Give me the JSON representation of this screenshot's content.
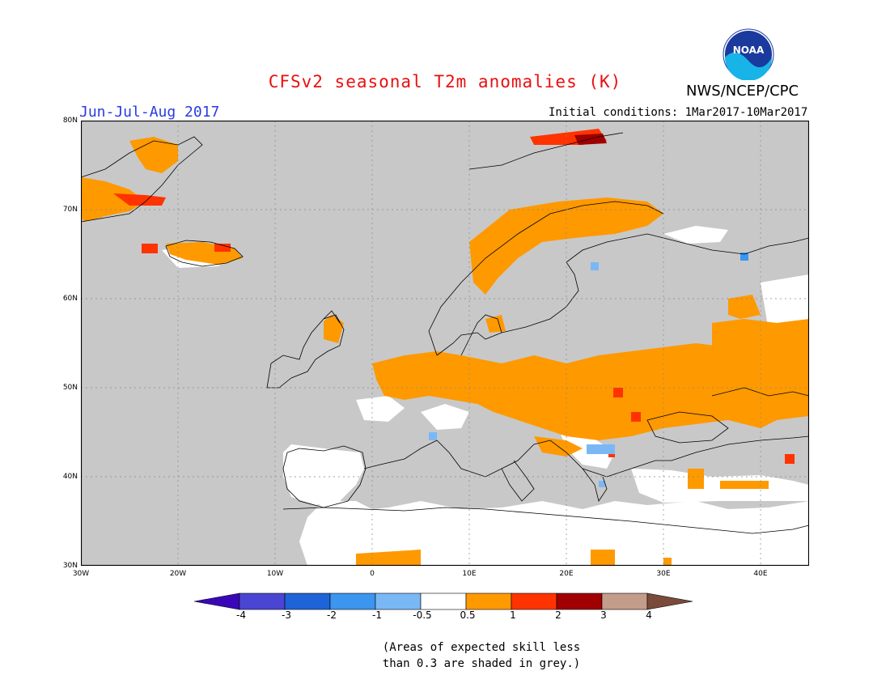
{
  "header": {
    "title": "CFSv2 seasonal T2m anomalies (K)",
    "org": "NWS/NCEP/CPC",
    "season": "Jun-Jul-Aug 2017",
    "initial_conditions": "Initial conditions: 1Mar2017-10Mar2017",
    "logo_text": "NOAA"
  },
  "map": {
    "lat_range": [
      30,
      80
    ],
    "lon_range": [
      -30,
      45
    ],
    "grid": true,
    "lat_labels": [
      "80N",
      "70N",
      "60N",
      "50N",
      "40N",
      "30N"
    ],
    "lon_labels": [
      "30W",
      "20W",
      "10W",
      "0",
      "10E",
      "20E",
      "30E",
      "40E"
    ],
    "background_color": "#c8c8c8",
    "anomaly_regions": [
      {
        "category": "0.5-1",
        "color": "#ff9900",
        "area": "Greenland east coast"
      },
      {
        "category": "1-2",
        "color": "#ff3300",
        "area": "Greenland east coast"
      },
      {
        "category": "0.5-1",
        "color": "#ff9900",
        "area": "Iceland"
      },
      {
        "category": "0.5-1",
        "color": "#ff9900",
        "area": "Norway coast"
      },
      {
        "category": "0.5-1",
        "color": "#ff9900",
        "area": "Central Europe"
      },
      {
        "category": "0.5-1",
        "color": "#ff9900",
        "area": "Ukraine and western Russia"
      },
      {
        "category": "1-2",
        "color": "#ff3300",
        "area": "Moldova"
      },
      {
        "category": "2-3",
        "color": "#a00000",
        "area": "Svalbard"
      },
      {
        "category": "-0.5-0.5",
        "color": "#ffffff",
        "area": "Iberia"
      },
      {
        "category": "-1--0.5",
        "color": "#7ab8f5",
        "area": "Balkans"
      }
    ]
  },
  "colorbar": {
    "labels": [
      "-4",
      "-3",
      "-2",
      "-1",
      "-0.5",
      "0.5",
      "1",
      "2",
      "3",
      "4"
    ],
    "colors": [
      "#3a07b8",
      "#4b45d3",
      "#1e64d8",
      "#3c95ee",
      "#7ab8f5",
      "#ffffff",
      "#ff9900",
      "#ff3300",
      "#a00000",
      "#c39c8a",
      "#7a4a3a"
    ]
  },
  "note": {
    "line1": "(Areas of expected skill less",
    "line2": "than 0.3 are shaded in grey.)"
  }
}
